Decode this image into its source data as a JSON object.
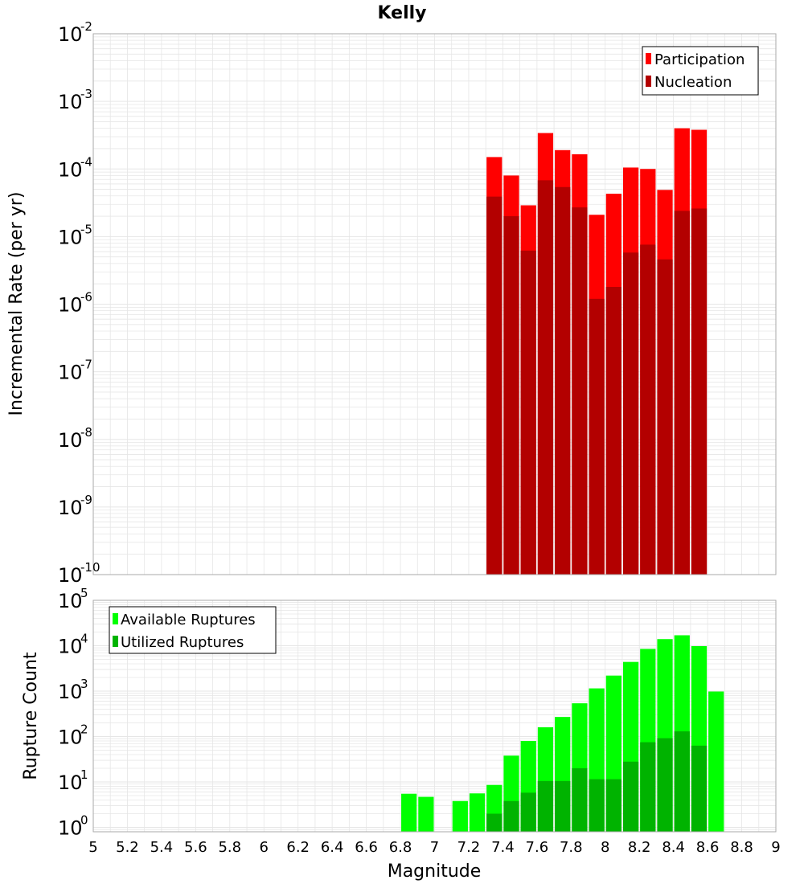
{
  "colors": {
    "participation": "#ff0000",
    "nucleation": "#b30000",
    "available": "#00ff00",
    "utilized": "#00b300",
    "grid": "#e6e6e6",
    "frame": "#aaaaaa"
  },
  "chart_data": [
    {
      "type": "bar",
      "title": "Kelly",
      "xlabel": "",
      "ylabel": "Incremental Rate (per yr)",
      "yscale": "log",
      "ylim": [
        1e-10,
        0.01
      ],
      "y_decade_labels": [
        {
          "base": "10",
          "exp": "-10"
        },
        {
          "base": "10",
          "exp": "-9"
        },
        {
          "base": "10",
          "exp": "-8"
        },
        {
          "base": "10",
          "exp": "-7"
        },
        {
          "base": "10",
          "exp": "-6"
        },
        {
          "base": "10",
          "exp": "-5"
        },
        {
          "base": "10",
          "exp": "-4"
        },
        {
          "base": "10",
          "exp": "-3"
        },
        {
          "base": "10",
          "exp": "-2"
        }
      ],
      "xlim": [
        5,
        9
      ],
      "bin_width": 0.1,
      "grid": true,
      "legend_position": "top-right",
      "series": [
        {
          "name": "Participation",
          "x": [
            7.35,
            7.45,
            7.55,
            7.65,
            7.75,
            7.85,
            7.95,
            8.05,
            8.15,
            8.25,
            8.35,
            8.45,
            8.55
          ],
          "values": [
            0.00015,
            8e-05,
            2.9e-05,
            0.00034,
            0.00019,
            0.000165,
            2.1e-05,
            4.3e-05,
            0.000105,
            0.0001,
            4.9e-05,
            0.0004,
            0.00038
          ]
        },
        {
          "name": "Nucleation",
          "x": [
            7.35,
            7.45,
            7.55,
            7.65,
            7.75,
            7.85,
            7.95,
            8.05,
            8.15,
            8.25,
            8.35,
            8.45,
            8.55
          ],
          "values": [
            3.9e-05,
            2e-05,
            6.2e-06,
            6.8e-05,
            5.4e-05,
            2.7e-05,
            1.2e-06,
            1.8e-06,
            5.8e-06,
            7.6e-06,
            4.6e-06,
            2.4e-05,
            2.6e-05
          ]
        }
      ]
    },
    {
      "type": "bar",
      "title": "",
      "xlabel": "Magnitude",
      "ylabel": "Rupture Count",
      "yscale": "log",
      "ylim": [
        0.8,
        100000
      ],
      "y_decade_labels": [
        {
          "base": "10",
          "exp": "0"
        },
        {
          "base": "10",
          "exp": "1"
        },
        {
          "base": "10",
          "exp": "2"
        },
        {
          "base": "10",
          "exp": "3"
        },
        {
          "base": "10",
          "exp": "4"
        },
        {
          "base": "10",
          "exp": "5"
        }
      ],
      "xlim": [
        5,
        9
      ],
      "x_tick_labels": [
        "5",
        "5.2",
        "5.4",
        "5.6",
        "5.8",
        "6",
        "6.2",
        "6.4",
        "6.6",
        "6.8",
        "7",
        "7.2",
        "7.4",
        "7.6",
        "7.8",
        "8",
        "8.2",
        "8.4",
        "8.6",
        "8.8",
        "9"
      ],
      "bin_width": 0.1,
      "grid": true,
      "legend_position": "top-left",
      "series": [
        {
          "name": "Available Ruptures",
          "x": [
            6.85,
            6.95,
            7.15,
            7.25,
            7.35,
            7.45,
            7.55,
            7.65,
            7.75,
            7.85,
            7.95,
            8.05,
            8.15,
            8.25,
            8.35,
            8.45,
            8.55,
            8.65
          ],
          "values": [
            5.5,
            4.7,
            3.8,
            5.6,
            8.6,
            38,
            80,
            160,
            270,
            540,
            1150,
            2200,
            4400,
            8500,
            14000,
            17000,
            9800,
            980
          ]
        },
        {
          "name": "Utilized Ruptures",
          "x": [
            7.35,
            7.45,
            7.55,
            7.65,
            7.75,
            7.85,
            7.95,
            8.05,
            8.15,
            8.25,
            8.35,
            8.45,
            8.55
          ],
          "values": [
            2.0,
            3.8,
            5.8,
            10.5,
            10.5,
            20,
            11.5,
            11.5,
            28,
            75,
            92,
            130,
            63
          ]
        }
      ]
    }
  ]
}
